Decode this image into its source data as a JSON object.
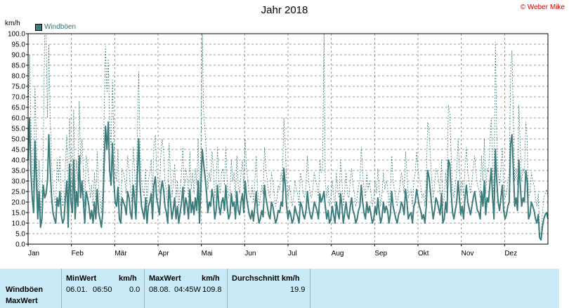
{
  "title": "Jahr 2018",
  "copyright": "© Weber Mike",
  "unit": "km/h",
  "legend_label": "Windböen",
  "colors": {
    "series": "#3c7c7c",
    "grid": "#7f7f7f",
    "panel": "#c8eaf7"
  },
  "chart_data": {
    "type": "line",
    "title": "Jahr 2018",
    "ylabel": "km/h",
    "ylim": [
      0,
      100
    ],
    "yticks": [
      "0.0",
      "5.0",
      "10.0",
      "15.0",
      "20.0",
      "25.0",
      "30.0",
      "35.0",
      "40.0",
      "45.0",
      "50.0",
      "55.0",
      "60.0",
      "65.0",
      "70.0",
      "75.0",
      "80.0",
      "85.0",
      "90.0",
      "95.0",
      "100.0"
    ],
    "xticks": [
      "Jan",
      "Feb",
      "Mär",
      "Apr",
      "Mai",
      "Jun",
      "Jul",
      "Aug",
      "Sep",
      "Okt",
      "Nov",
      "Dez"
    ],
    "legend": "top-left",
    "grid": true,
    "series": [
      {
        "name": "Windböen",
        "style": "solid",
        "values": [
          40,
          60,
          35,
          22,
          15,
          49,
          30,
          12,
          25,
          8,
          12,
          28,
          22,
          24,
          30,
          52,
          35,
          22,
          15,
          12,
          10,
          22,
          18,
          25,
          14,
          10,
          12,
          22,
          30,
          8,
          38,
          20,
          15,
          40,
          12,
          25,
          18,
          42,
          22,
          30,
          20,
          10,
          25,
          22,
          18,
          12,
          16,
          10,
          20,
          12,
          26,
          15,
          12,
          8,
          15,
          38,
          56,
          45,
          58,
          35,
          28,
          48,
          30,
          20,
          18,
          27,
          12,
          10,
          22,
          20,
          18,
          14,
          25,
          22,
          15,
          12,
          28,
          22,
          12,
          32,
          50,
          28,
          18,
          15,
          12,
          22,
          10,
          18,
          20,
          24,
          12,
          28,
          32,
          22,
          18,
          14,
          25,
          30,
          26,
          18,
          15,
          10,
          28,
          20,
          12,
          16,
          22,
          12,
          18,
          10,
          15,
          20,
          27,
          14,
          22,
          19,
          12,
          26,
          15,
          20,
          14,
          22,
          16,
          30,
          10,
          28,
          45,
          38,
          32,
          25,
          15,
          20,
          18,
          26,
          22,
          12,
          16,
          28,
          18,
          14,
          20,
          22,
          16,
          28,
          18,
          12,
          14,
          24,
          18,
          20,
          12,
          25,
          16,
          14,
          20,
          24,
          15,
          30,
          22,
          18,
          14,
          12,
          16,
          11,
          18,
          25,
          15,
          10,
          12,
          16,
          13,
          28,
          22,
          18,
          14,
          12,
          20,
          18,
          14,
          10,
          12,
          16,
          15,
          20,
          18,
          36,
          28,
          18,
          12,
          16,
          14,
          10,
          12,
          18,
          15,
          13,
          10,
          20,
          18,
          14,
          12,
          16,
          25,
          18,
          14,
          12,
          15,
          20,
          18,
          16,
          12,
          24,
          20,
          22,
          25,
          18,
          12,
          16,
          10,
          12,
          18,
          14,
          10,
          20,
          15,
          12,
          24,
          18,
          10,
          15,
          20,
          14,
          12,
          18,
          22,
          16,
          14,
          10,
          12,
          16,
          18,
          28,
          20,
          15,
          12,
          20,
          15,
          18,
          14,
          10,
          12,
          18,
          14,
          22,
          15,
          10,
          13,
          20,
          15,
          18,
          16,
          10,
          14,
          25,
          18,
          15,
          12,
          10,
          14,
          16,
          20,
          18,
          14,
          26,
          20,
          12,
          14,
          15,
          10,
          18,
          20,
          26,
          22,
          18,
          16,
          12,
          14,
          10,
          18,
          35,
          32,
          25,
          18,
          12,
          16,
          22,
          20,
          17,
          14,
          24,
          10,
          12,
          20,
          15,
          40,
          38,
          25,
          15,
          12,
          16,
          20,
          30,
          22,
          14,
          18,
          12,
          22,
          28,
          20,
          17,
          14,
          18,
          22,
          25,
          20,
          16,
          15,
          12,
          25,
          18,
          30,
          14,
          22,
          20,
          28,
          36,
          22,
          12,
          45,
          30,
          20,
          16,
          22,
          28,
          16,
          12,
          14,
          18,
          20,
          48,
          52,
          35,
          18,
          22,
          16,
          40,
          28,
          18,
          22,
          20,
          35,
          30,
          12,
          14,
          20,
          18,
          16,
          12,
          10,
          14,
          3,
          2,
          8,
          12,
          14,
          15,
          12
        ]
      },
      {
        "name": "MaxWert",
        "style": "dashed",
        "values": [
          62,
          90,
          58,
          38,
          25,
          75,
          48,
          20,
          40,
          15,
          22,
          45,
          105,
          110,
          60,
          95,
          60,
          38,
          28,
          22,
          18,
          40,
          30,
          42,
          24,
          18,
          20,
          38,
          52,
          15,
          60,
          35,
          26,
          64,
          20,
          40,
          30,
          68,
          38,
          50,
          34,
          18,
          42,
          38,
          30,
          22,
          28,
          18,
          34,
          20,
          44,
          26,
          22,
          15,
          26,
          62,
          94,
          72,
          88,
          58,
          46,
          78,
          50,
          34,
          30,
          45,
          22,
          18,
          36,
          34,
          30,
          24,
          42,
          36,
          26,
          20,
          46,
          36,
          22,
          52,
          82,
          46,
          30,
          26,
          22,
          36,
          18,
          30,
          34,
          40,
          22,
          46,
          52,
          36,
          30,
          24,
          42,
          50,
          44,
          30,
          26,
          18,
          48,
          34,
          22,
          28,
          38,
          22,
          30,
          18,
          26,
          34,
          46,
          24,
          36,
          32,
          22,
          44,
          26,
          34,
          24,
          36,
          28,
          50,
          18,
          46,
          100,
          62,
          54,
          42,
          26,
          34,
          30,
          44,
          36,
          22,
          28,
          46,
          30,
          24,
          34,
          36,
          28,
          46,
          30,
          22,
          24,
          40,
          30,
          34,
          22,
          42,
          28,
          24,
          34,
          40,
          26,
          50,
          36,
          30,
          24,
          22,
          28,
          20,
          30,
          42,
          26,
          18,
          22,
          28,
          24,
          46,
          36,
          30,
          24,
          22,
          34,
          30,
          24,
          18,
          22,
          28,
          26,
          34,
          30,
          60,
          46,
          30,
          22,
          28,
          24,
          18,
          22,
          30,
          26,
          24,
          18,
          34,
          30,
          24,
          22,
          28,
          42,
          30,
          24,
          22,
          26,
          34,
          30,
          28,
          22,
          40,
          34,
          36,
          100,
          30,
          22,
          28,
          18,
          22,
          30,
          24,
          18,
          34,
          26,
          22,
          40,
          30,
          18,
          26,
          34,
          24,
          22,
          30,
          36,
          28,
          24,
          18,
          22,
          28,
          30,
          46,
          34,
          26,
          22,
          34,
          26,
          30,
          24,
          18,
          22,
          30,
          24,
          36,
          26,
          18,
          24,
          34,
          26,
          30,
          28,
          18,
          24,
          42,
          30,
          26,
          22,
          18,
          24,
          28,
          34,
          30,
          24,
          44,
          34,
          22,
          24,
          26,
          18,
          30,
          34,
          44,
          36,
          30,
          28,
          22,
          24,
          18,
          30,
          58,
          54,
          42,
          30,
          22,
          28,
          36,
          34,
          30,
          24,
          40,
          18,
          22,
          34,
          26,
          66,
          62,
          42,
          26,
          22,
          28,
          34,
          50,
          36,
          24,
          30,
          22,
          36,
          46,
          34,
          30,
          24,
          30,
          36,
          42,
          34,
          28,
          26,
          22,
          42,
          30,
          50,
          24,
          36,
          34,
          46,
          60,
          36,
          22,
          96,
          50,
          34,
          28,
          36,
          46,
          28,
          22,
          24,
          30,
          34,
          80,
          92,
          58,
          30,
          36,
          28,
          66,
          46,
          30,
          36,
          34,
          58,
          50,
          22,
          24,
          34,
          30,
          28,
          22,
          18,
          24,
          6,
          4,
          14,
          22,
          24,
          26,
          22
        ]
      }
    ]
  },
  "stats": {
    "row_labels": [
      "Windböen",
      "MaxWert"
    ],
    "min": {
      "header": "MinWert",
      "unit": "km/h",
      "date": "06.01.",
      "time": "06:50",
      "value": "0.0"
    },
    "max": {
      "header": "MaxWert",
      "unit": "km/h",
      "date": "08.08.",
      "time": "04:45W",
      "value": "109.8"
    },
    "avg": {
      "header": "Durchschnitt km/h",
      "value": "19.9"
    }
  }
}
